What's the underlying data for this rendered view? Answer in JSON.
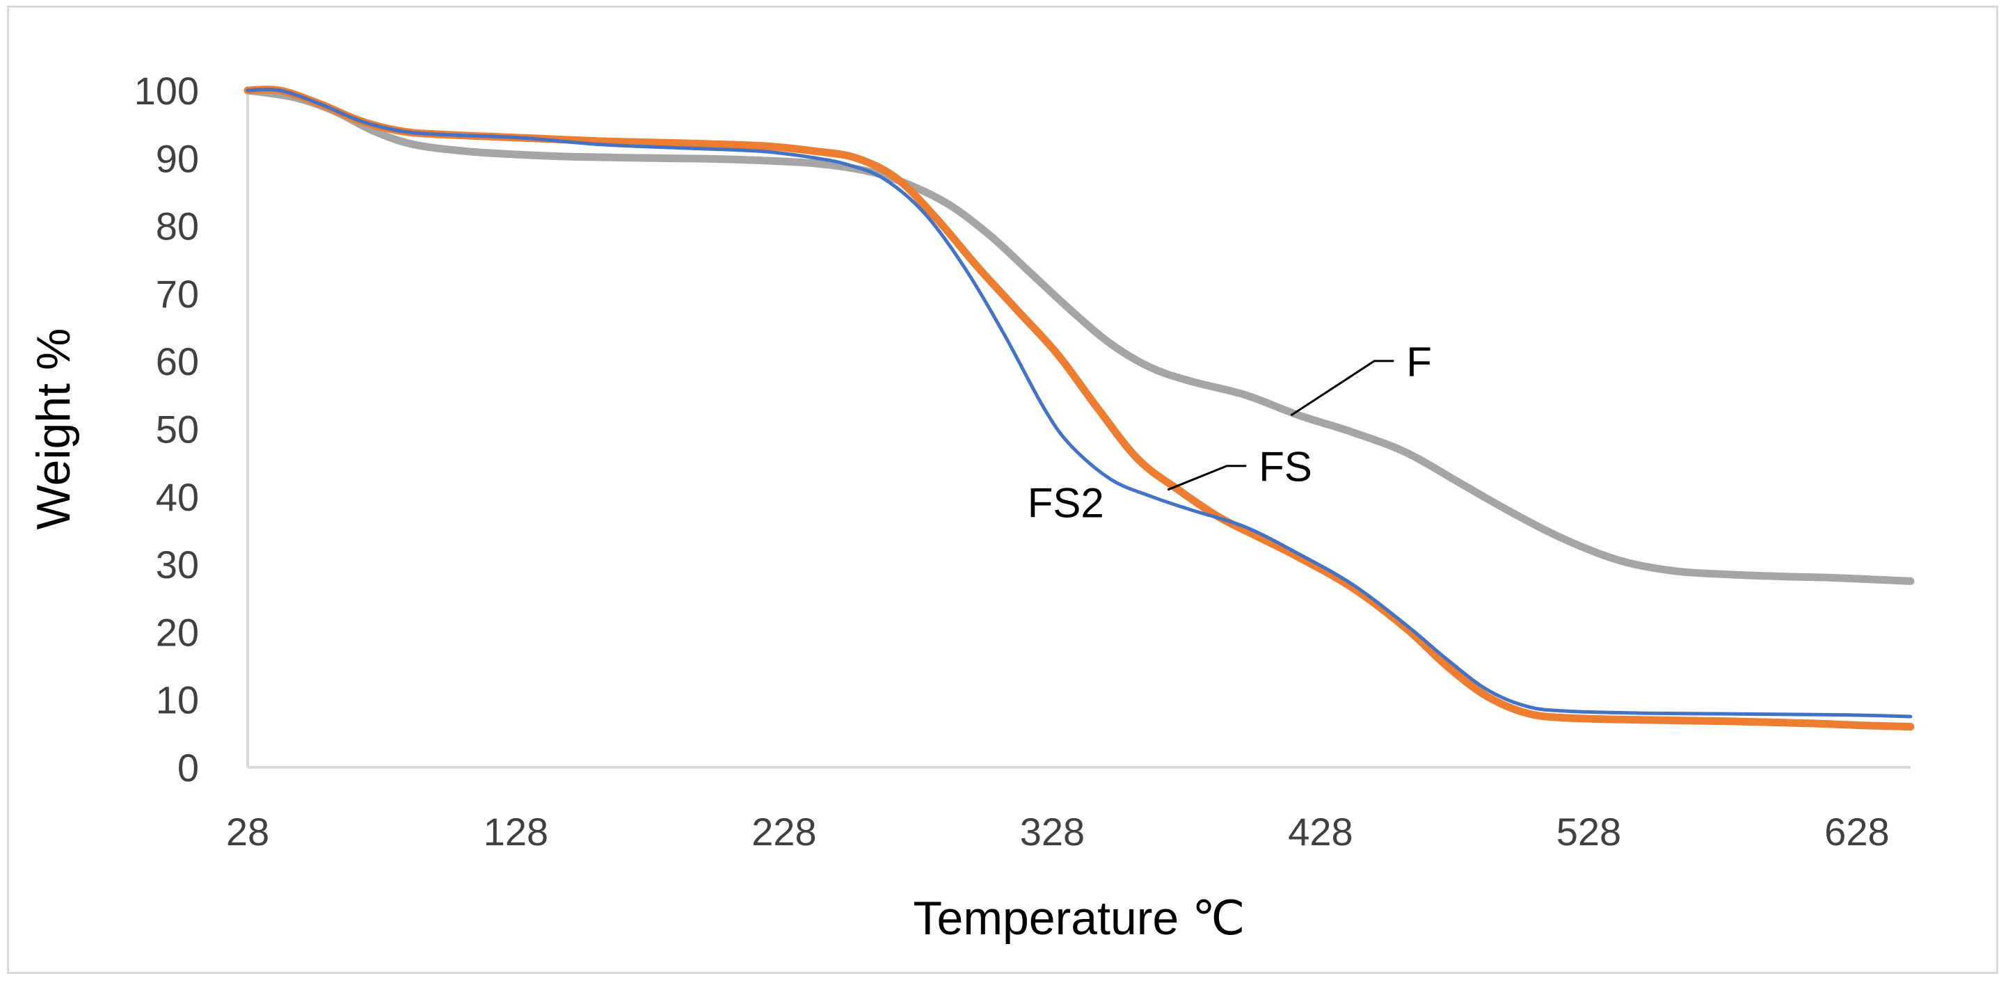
{
  "chart_data": {
    "type": "line",
    "title": "",
    "xlabel": "Temperature ℃",
    "ylabel": "Weight %",
    "xlim": [
      28,
      648
    ],
    "ylim": [
      0,
      100
    ],
    "x_ticks": [
      28,
      128,
      228,
      328,
      428,
      528,
      628
    ],
    "y_ticks": [
      0,
      10,
      20,
      30,
      40,
      50,
      60,
      70,
      80,
      90,
      100
    ],
    "grid": false,
    "legend": "none",
    "series": [
      {
        "name": "F",
        "color": "#a5a5a5",
        "label_text": "F",
        "label_anchor": [
          417,
          52
        ],
        "label_position": [
          460,
          59
        ],
        "points": [
          [
            28,
            100
          ],
          [
            45,
            99
          ],
          [
            60,
            97
          ],
          [
            75,
            94
          ],
          [
            90,
            92
          ],
          [
            110,
            91
          ],
          [
            130,
            90.5
          ],
          [
            150,
            90.2
          ],
          [
            180,
            90
          ],
          [
            210,
            89.8
          ],
          [
            240,
            89.2
          ],
          [
            260,
            88
          ],
          [
            275,
            86
          ],
          [
            290,
            83
          ],
          [
            305,
            78.5
          ],
          [
            320,
            73
          ],
          [
            335,
            67.5
          ],
          [
            350,
            62.5
          ],
          [
            365,
            59
          ],
          [
            380,
            57
          ],
          [
            400,
            55
          ],
          [
            420,
            52
          ],
          [
            440,
            49.5
          ],
          [
            460,
            46.5
          ],
          [
            480,
            42
          ],
          [
            500,
            37.5
          ],
          [
            520,
            33.5
          ],
          [
            540,
            30.5
          ],
          [
            560,
            29
          ],
          [
            580,
            28.5
          ],
          [
            600,
            28.2
          ],
          [
            620,
            28
          ],
          [
            648,
            27.5
          ]
        ]
      },
      {
        "name": "FS",
        "color": "#ed7d31",
        "label_text": "FS",
        "label_anchor": [
          371,
          41
        ],
        "label_position": [
          405,
          43.5
        ],
        "points": [
          [
            28,
            100
          ],
          [
            40,
            100
          ],
          [
            55,
            98
          ],
          [
            70,
            95.5
          ],
          [
            85,
            94
          ],
          [
            100,
            93.5
          ],
          [
            130,
            93
          ],
          [
            160,
            92.5
          ],
          [
            190,
            92.2
          ],
          [
            220,
            91.8
          ],
          [
            240,
            91
          ],
          [
            255,
            90
          ],
          [
            270,
            87
          ],
          [
            285,
            81
          ],
          [
            300,
            74
          ],
          [
            315,
            67.5
          ],
          [
            330,
            61
          ],
          [
            345,
            53
          ],
          [
            360,
            45.5
          ],
          [
            375,
            41
          ],
          [
            390,
            37
          ],
          [
            405,
            34
          ],
          [
            420,
            31
          ],
          [
            440,
            26.5
          ],
          [
            460,
            20.5
          ],
          [
            475,
            15
          ],
          [
            490,
            10.5
          ],
          [
            505,
            8
          ],
          [
            520,
            7.3
          ],
          [
            550,
            7
          ],
          [
            580,
            6.8
          ],
          [
            610,
            6.5
          ],
          [
            630,
            6.2
          ],
          [
            648,
            6
          ]
        ]
      },
      {
        "name": "FS2",
        "color": "#4472c4",
        "label_text": "FS2",
        "label_anchor": [
          340,
          44
        ],
        "label_position": [
          333,
          39
        ],
        "points": [
          [
            28,
            100
          ],
          [
            40,
            100
          ],
          [
            55,
            98
          ],
          [
            70,
            95.5
          ],
          [
            85,
            94
          ],
          [
            100,
            93.5
          ],
          [
            130,
            93
          ],
          [
            160,
            92
          ],
          [
            190,
            91.5
          ],
          [
            220,
            91
          ],
          [
            240,
            90
          ],
          [
            252,
            89
          ],
          [
            265,
            87
          ],
          [
            280,
            82
          ],
          [
            295,
            74
          ],
          [
            310,
            64
          ],
          [
            325,
            53
          ],
          [
            335,
            47.5
          ],
          [
            350,
            42.5
          ],
          [
            365,
            40
          ],
          [
            380,
            38
          ],
          [
            400,
            35.5
          ],
          [
            420,
            31.5
          ],
          [
            440,
            27
          ],
          [
            460,
            21
          ],
          [
            475,
            16
          ],
          [
            490,
            11.5
          ],
          [
            505,
            9
          ],
          [
            520,
            8.3
          ],
          [
            550,
            8
          ],
          [
            580,
            7.9
          ],
          [
            610,
            7.8
          ],
          [
            630,
            7.7
          ],
          [
            648,
            7.5
          ]
        ]
      }
    ]
  }
}
